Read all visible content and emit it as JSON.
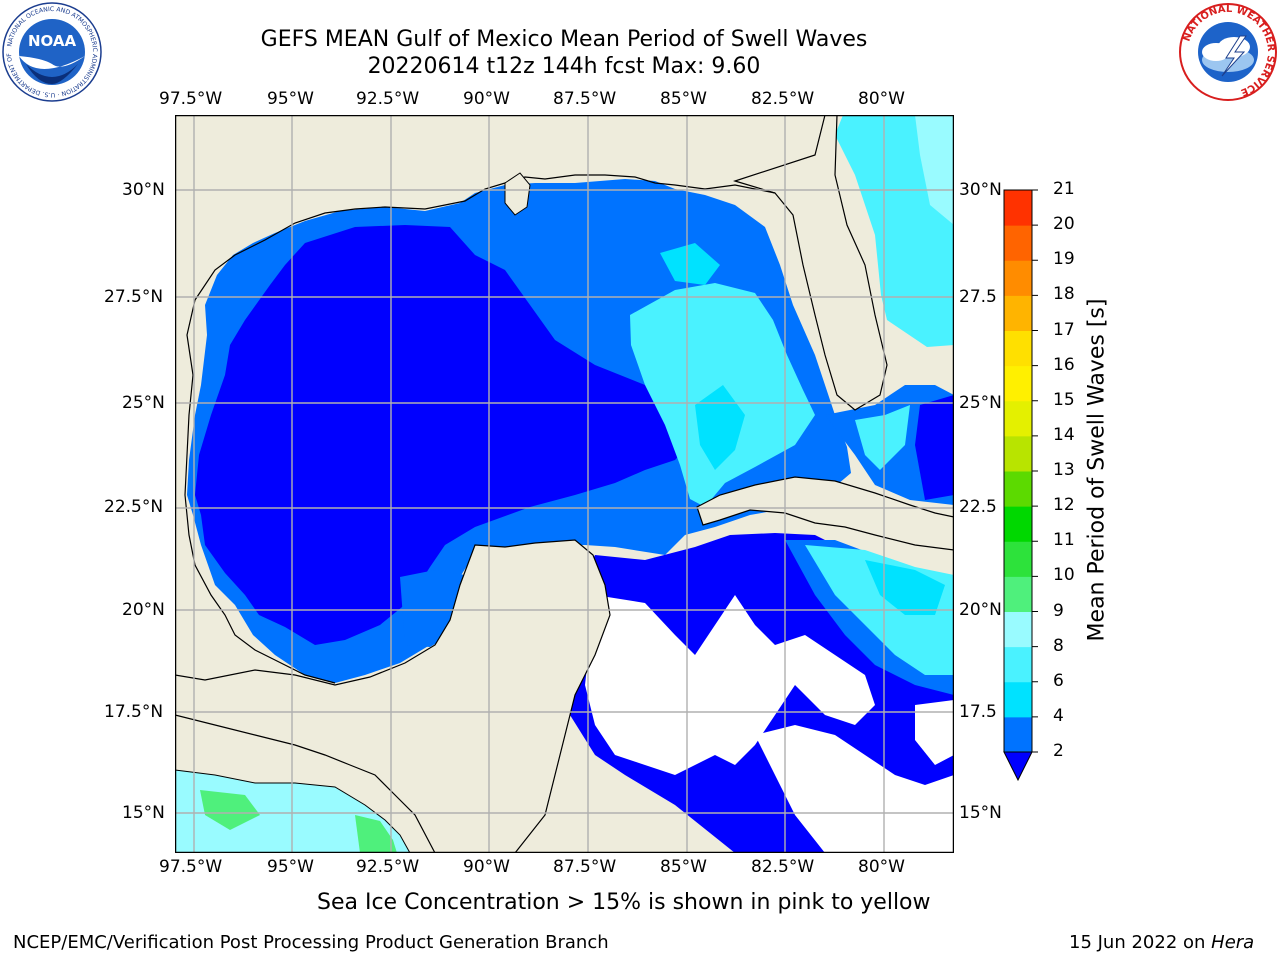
{
  "title": {
    "line1": "GEFS MEAN Gulf of Mexico Mean Period of Swell Waves",
    "line2": "20220614 t12z 144h fcst   Max: 9.60"
  },
  "map": {
    "lon_ticks": [
      "97.5°W",
      "95°W",
      "92.5°W",
      "90°W",
      "87.5°W",
      "85°W",
      "82.5°W",
      "80°W"
    ],
    "lat_ticks": [
      "30°N",
      "27.5°N",
      "25°N",
      "22.5°N",
      "20°N",
      "17.5°N",
      "15°N"
    ],
    "lat_ticks_right": [
      "30°N",
      "27.5",
      "25°N",
      "22.5",
      "20°N",
      "17.5",
      "15°N"
    ],
    "land_color": "#eeecdc",
    "grid_color": "#b0b0b0"
  },
  "colorbar": {
    "label": "Mean Period of Swell Waves [s]",
    "ticks": [
      "2",
      "4",
      "6",
      "8",
      "9",
      "10",
      "11",
      "12",
      "13",
      "14",
      "15",
      "16",
      "17",
      "18",
      "19",
      "20",
      "21"
    ],
    "colors": [
      "#0073ff",
      "#00e2ff",
      "#4af2ff",
      "#99fbff",
      "#4ff07c",
      "#2de23b",
      "#00d800",
      "#5cda00",
      "#b8e400",
      "#e4f000",
      "#fff000",
      "#ffe000",
      "#ffb400",
      "#ff8c00",
      "#ff6400",
      "#ff3200",
      "#ff0000"
    ],
    "extend_color": "#0000ff"
  },
  "note": "Sea Ice Concentration > 15% is shown in pink to yellow",
  "footer": {
    "left": "NCEP/EMC/Verification Post Processing Product Generation Branch",
    "right_prefix": "15 Jun 2022 on ",
    "right_machine": "Hera"
  },
  "logos": {
    "noaa_text": "NOAA",
    "noaa_ring": "NATIONAL OCEANIC AND ATMOSPHERIC ADMINISTRATION · U.S. DEPARTMENT OF COMMERCE",
    "nws_ring": "NATIONAL WEATHER SERVICE"
  }
}
